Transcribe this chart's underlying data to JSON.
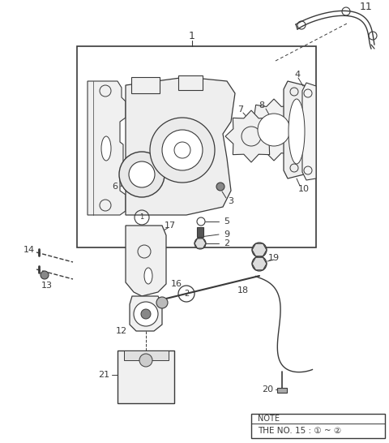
{
  "bg_color": "#ffffff",
  "lc": "#3a3a3a",
  "fig_w": 4.8,
  "fig_h": 5.46,
  "dpi": 100,
  "note_line1": "NOTE",
  "note_line2": "THE NO. 15 : ① ~ ②"
}
